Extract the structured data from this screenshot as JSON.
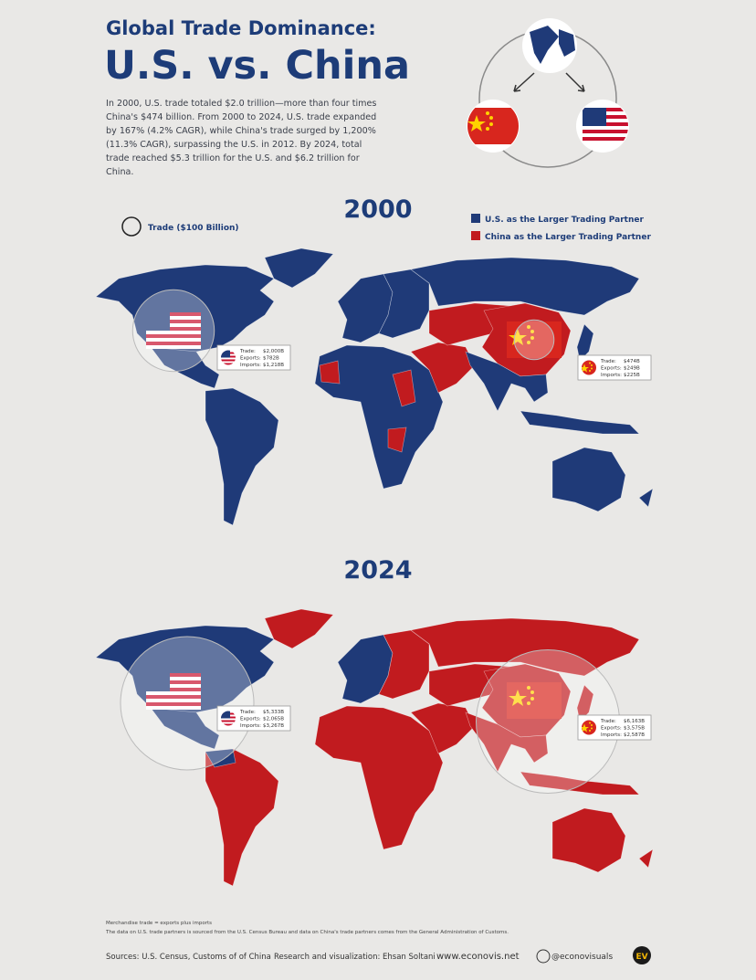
{
  "header": {
    "title_line1": "Global Trade Dominance:",
    "title_line2": "U.S. vs. China",
    "intro": "In 2000, U.S. trade totaled $2.0 trillion—more than four times China's $474 billion. From 2000 to 2024, U.S. trade expanded by 167% (4.2% CAGR), while China's trade surged by 1,200% (11.3% CAGR), surpassing the U.S. in 2012. By 2024, total trade reached $5.3 trillion for the U.S. and $6.2 trillion for China."
  },
  "legend": {
    "bubble": {
      "value": 100,
      "label": "Trade ($100 Billion)"
    },
    "us": "U.S. as the Larger Trading Partner",
    "china": "China as the Larger Trading Partner"
  },
  "stat_labels": [
    "Trade:",
    "Exports:",
    "Imports:"
  ],
  "maps": [
    {
      "year": "2000",
      "us": {
        "trade": {
          "value": 2000,
          "label": "$2,000B"
        },
        "exports": "$782B",
        "imports": "$1,218B"
      },
      "china": {
        "trade": {
          "value": 474,
          "label": "$474B"
        },
        "exports": "$249B",
        "imports": "$225B"
      }
    },
    {
      "year": "2024",
      "us": {
        "trade": {
          "value": 5333,
          "label": "$5,333B"
        },
        "exports": "$2,065B",
        "imports": "$3,267B"
      },
      "china": {
        "trade": {
          "value": 6163,
          "label": "$6,163B"
        },
        "exports": "$3,575B",
        "imports": "$2,587B"
      }
    }
  ],
  "footer": {
    "note1": "Merchandise trade = exports plus imports",
    "note2": "The data on U.S. trade partners is sourced from the U.S. Census Bureau and data on China's trade partners comes from the General Administration of Customs.",
    "sources": "Sources: U.S. Census, Customs of of China",
    "credit": "Research and visualization: Ehsan Soltani",
    "website": "www.econovis.net",
    "social": "@econovisuals",
    "logo": "EV"
  }
}
